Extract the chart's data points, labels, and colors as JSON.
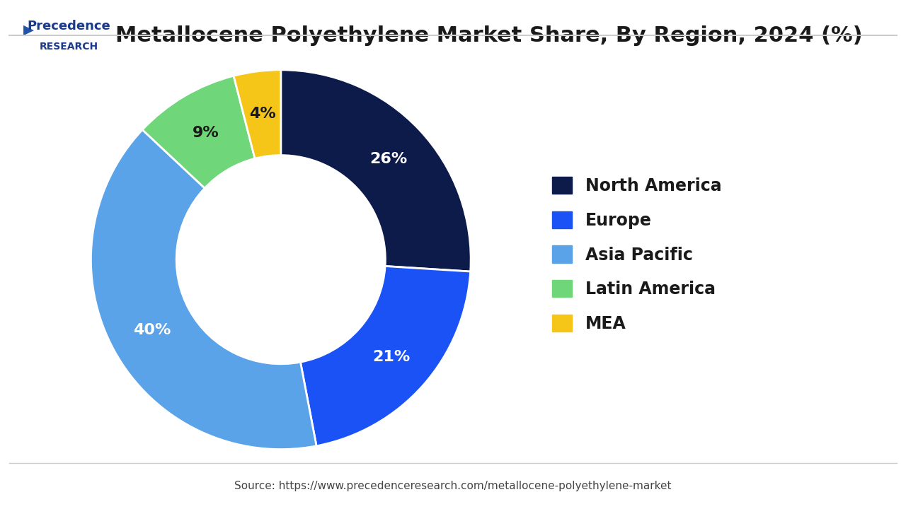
{
  "title": "Metallocene Polyethylene Market Share, By Region, 2024 (%)",
  "source_text": "Source: https://www.precedenceresearch.com/metallocene-polyethylene-market",
  "segments": [
    {
      "label": "North America",
      "value": 26,
      "color": "#0d1b4b"
    },
    {
      "label": "Europe",
      "value": 21,
      "color": "#1a52f5"
    },
    {
      "label": "Asia Pacific",
      "value": 40,
      "color": "#5ba3e8"
    },
    {
      "label": "Latin America",
      "value": 9,
      "color": "#6fd67a"
    },
    {
      "label": "MEA",
      "value": 4,
      "color": "#f5c518"
    }
  ],
  "label_colors": {
    "North America": "#ffffff",
    "Europe": "#ffffff",
    "Asia Pacific": "#ffffff",
    "Latin America": "#1a1a1a",
    "MEA": "#1a1a1a"
  },
  "background_color": "#ffffff",
  "title_fontsize": 22,
  "legend_fontsize": 17,
  "label_fontsize": 16,
  "start_angle": 90,
  "logo_text_line1": "Precedence",
  "logo_text_line2": "RESEARCH"
}
